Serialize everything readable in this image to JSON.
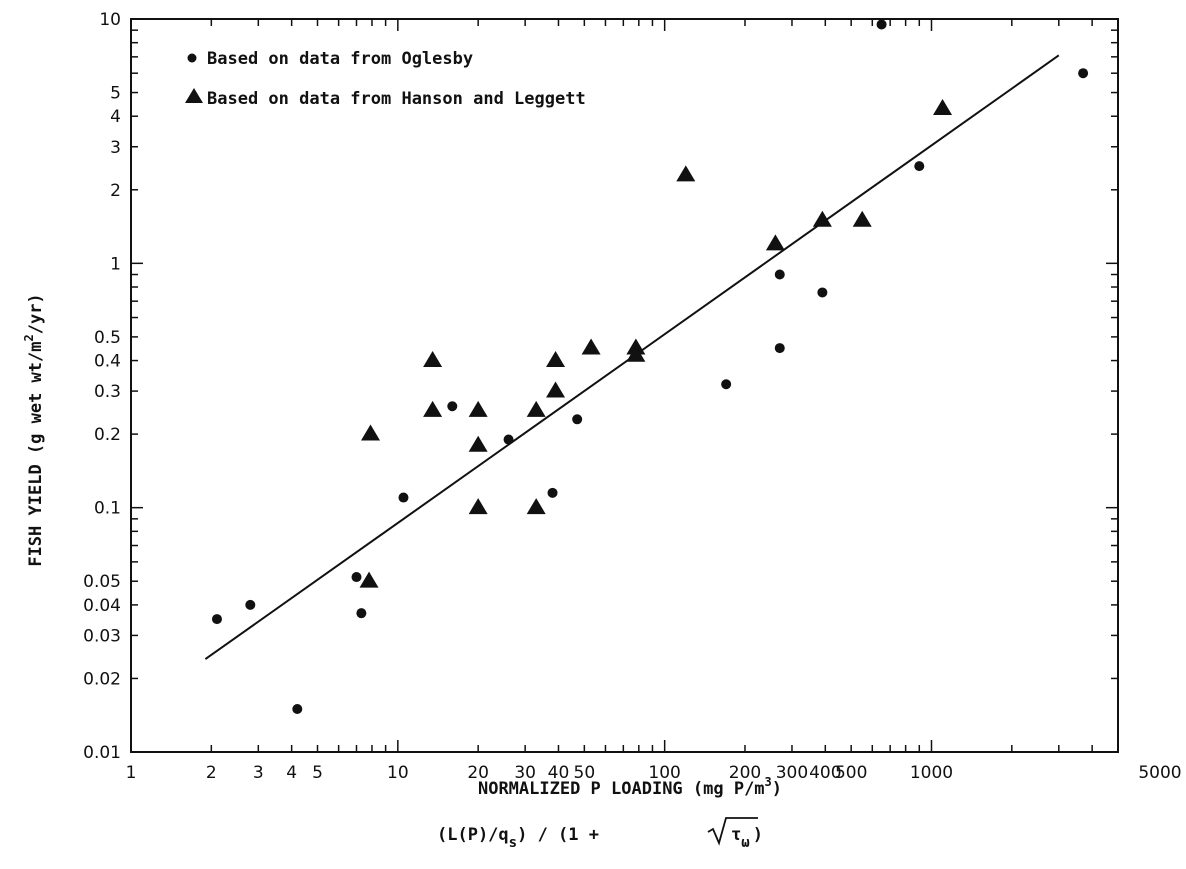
{
  "chart_data": {
    "type": "scatter",
    "x_scale": "log",
    "y_scale": "log",
    "xlim": [
      1,
      5000
    ],
    "ylim": [
      0.01,
      10
    ],
    "grid": false,
    "legend_position": "top-left",
    "xlabel": "NORMALIZED P LOADING  (mg P/m",
    "xlabel_sup": "3",
    "xlabel_close": ")",
    "xlabel2_parts": {
      "open": "(L(P)/q",
      "sub_s": "s",
      "mid": ") / (1 + ",
      "tau": "τ",
      "sub_omega": "ω",
      "close": ")"
    },
    "ylabel": "FISH YIELD  (g wet wt/m",
    "ylabel_sup": "2",
    "ylabel_end": "/yr)",
    "x_tick_labels": [
      {
        "label": "1",
        "value": 1
      },
      {
        "label": "2",
        "value": 2
      },
      {
        "label": "3",
        "value": 3
      },
      {
        "label": "4",
        "value": 4
      },
      {
        "label": "5",
        "value": 5
      },
      {
        "label": "10",
        "value": 10
      },
      {
        "label": "20",
        "value": 20
      },
      {
        "label": "30",
        "value": 30
      },
      {
        "label": "40",
        "value": 40
      },
      {
        "label": "50",
        "value": 50
      },
      {
        "label": "100",
        "value": 100
      },
      {
        "label": "200",
        "value": 200
      },
      {
        "label": "300",
        "value": 300
      },
      {
        "label": "400",
        "value": 400
      },
      {
        "label": "500",
        "value": 500
      },
      {
        "label": "1000",
        "value": 1000
      },
      {
        "label": "5000",
        "value": 5000
      }
    ],
    "y_tick_labels": [
      {
        "label": "0.01",
        "value": 0.01
      },
      {
        "label": "0.02",
        "value": 0.02
      },
      {
        "label": "0.03",
        "value": 0.03
      },
      {
        "label": "0.04",
        "value": 0.04
      },
      {
        "label": "0.05",
        "value": 0.05
      },
      {
        "label": "0.1",
        "value": 0.1
      },
      {
        "label": "0.2",
        "value": 0.2
      },
      {
        "label": "0.3",
        "value": 0.3
      },
      {
        "label": "0.4",
        "value": 0.4
      },
      {
        "label": "0.5",
        "value": 0.5
      },
      {
        "label": "1",
        "value": 1
      },
      {
        "label": "2",
        "value": 2
      },
      {
        "label": "3",
        "value": 3
      },
      {
        "label": "4",
        "value": 4
      },
      {
        "label": "5",
        "value": 5
      },
      {
        "label": "10",
        "value": 10
      }
    ],
    "series": [
      {
        "name": "Based on data from Oglesby",
        "marker": "circle",
        "points": [
          [
            2.1,
            0.035
          ],
          [
            2.8,
            0.04
          ],
          [
            4.2,
            0.015
          ],
          [
            7,
            0.052
          ],
          [
            7.3,
            0.037
          ],
          [
            10.5,
            0.11
          ],
          [
            16,
            0.26
          ],
          [
            26,
            0.19
          ],
          [
            38,
            0.115
          ],
          [
            47,
            0.23
          ],
          [
            170,
            0.32
          ],
          [
            270,
            0.9
          ],
          [
            270,
            0.45
          ],
          [
            390,
            0.76
          ],
          [
            650,
            9.5
          ],
          [
            900,
            2.5
          ],
          [
            3700,
            6.0
          ]
        ]
      },
      {
        "name": "Based on data from Hanson and Leggett",
        "marker": "triangle",
        "points": [
          [
            7.8,
            0.05
          ],
          [
            7.9,
            0.2
          ],
          [
            13.5,
            0.4
          ],
          [
            13.5,
            0.25
          ],
          [
            20,
            0.25
          ],
          [
            20,
            0.18
          ],
          [
            20,
            0.1
          ],
          [
            33,
            0.25
          ],
          [
            33,
            0.1
          ],
          [
            39,
            0.3
          ],
          [
            39,
            0.4
          ],
          [
            53,
            0.45
          ],
          [
            78,
            0.45
          ],
          [
            78,
            0.42
          ],
          [
            120,
            2.3
          ],
          [
            260,
            1.2
          ],
          [
            390,
            1.5
          ],
          [
            550,
            1.5
          ],
          [
            1100,
            4.3
          ]
        ]
      }
    ],
    "fit_line": {
      "x": [
        1.9,
        3000
      ],
      "y": [
        0.024,
        7.1
      ]
    },
    "colors": {
      "ink": "#111111",
      "background": "#ffffff"
    }
  }
}
